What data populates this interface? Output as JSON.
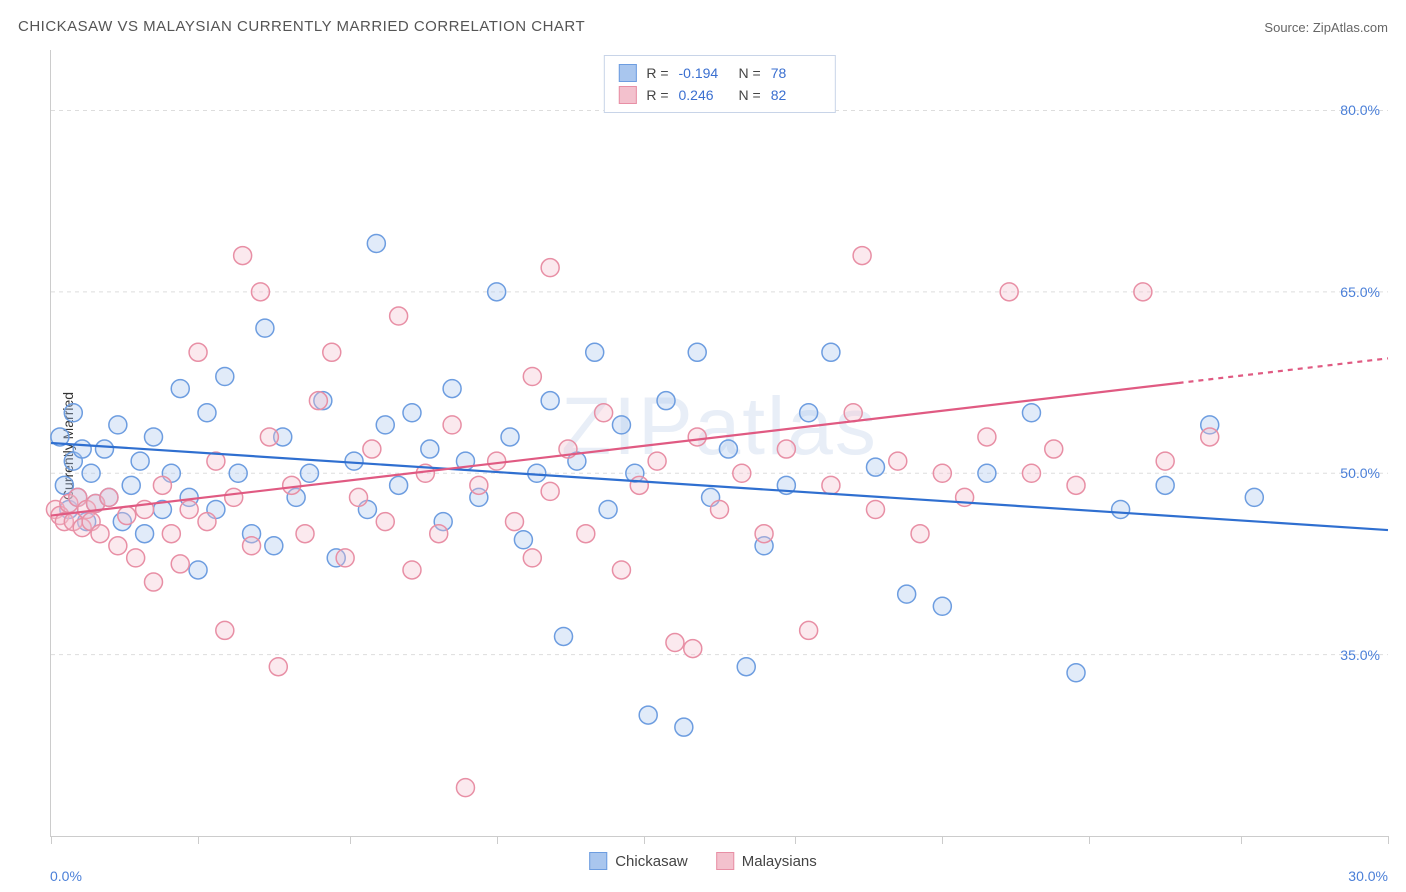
{
  "title": "CHICKASAW VS MALAYSIAN CURRENTLY MARRIED CORRELATION CHART",
  "source_label": "Source:",
  "source_name": "ZipAtlas.com",
  "ylabel": "Currently Married",
  "watermark": "ZIPatlas",
  "chart": {
    "type": "scatter",
    "xlim": [
      0,
      30
    ],
    "ylim": [
      20,
      85
    ],
    "x_axis_unit": "%",
    "y_axis_unit": "%",
    "xmin_label": "0.0%",
    "xmax_label": "30.0%",
    "y_ticks": [
      35.0,
      50.0,
      65.0,
      80.0
    ],
    "y_tick_labels": [
      "35.0%",
      "50.0%",
      "65.0%",
      "80.0%"
    ],
    "x_tick_positions": [
      0,
      3.3,
      6.7,
      10,
      13.3,
      16.7,
      20,
      23.3,
      26.7,
      30
    ],
    "grid_color": "#dddddd",
    "background_color": "#ffffff",
    "axis_color": "#cccccc",
    "tick_label_color": "#4a7fd8",
    "marker_radius": 9,
    "marker_stroke_width": 1.5,
    "marker_fill_opacity": 0.35,
    "trendline_width": 2.2
  },
  "series": [
    {
      "name": "Chickasaw",
      "color_fill": "#a9c6ee",
      "color_stroke": "#6d9de0",
      "trend_color": "#2f6fd0",
      "r": "-0.194",
      "n": "78",
      "trend": {
        "x1": 0,
        "y1": 52.5,
        "x2": 30,
        "y2": 45.3,
        "dashed_from_x": null
      },
      "points": [
        [
          0.2,
          53
        ],
        [
          0.3,
          49
        ],
        [
          0.4,
          47
        ],
        [
          0.5,
          55
        ],
        [
          0.5,
          51
        ],
        [
          0.6,
          48
        ],
        [
          0.7,
          52
        ],
        [
          0.8,
          46
        ],
        [
          0.9,
          50
        ],
        [
          1.0,
          47.5
        ],
        [
          1.2,
          52
        ],
        [
          1.3,
          48
        ],
        [
          1.5,
          54
        ],
        [
          1.6,
          46
        ],
        [
          1.8,
          49
        ],
        [
          2.0,
          51
        ],
        [
          2.1,
          45
        ],
        [
          2.3,
          53
        ],
        [
          2.5,
          47
        ],
        [
          2.7,
          50
        ],
        [
          2.9,
          57
        ],
        [
          3.1,
          48
        ],
        [
          3.3,
          42
        ],
        [
          3.5,
          55
        ],
        [
          3.7,
          47
        ],
        [
          3.9,
          58
        ],
        [
          4.2,
          50
        ],
        [
          4.5,
          45
        ],
        [
          4.8,
          62
        ],
        [
          5.0,
          44
        ],
        [
          5.2,
          53
        ],
        [
          5.5,
          48
        ],
        [
          5.8,
          50
        ],
        [
          6.1,
          56
        ],
        [
          6.4,
          43
        ],
        [
          6.8,
          51
        ],
        [
          7.1,
          47
        ],
        [
          7.3,
          69
        ],
        [
          7.5,
          54
        ],
        [
          7.8,
          49
        ],
        [
          8.1,
          55
        ],
        [
          8.5,
          52
        ],
        [
          8.8,
          46
        ],
        [
          9.0,
          57
        ],
        [
          9.3,
          51
        ],
        [
          9.6,
          48
        ],
        [
          10.0,
          65
        ],
        [
          10.3,
          53
        ],
        [
          10.6,
          44.5
        ],
        [
          10.9,
          50
        ],
        [
          11.2,
          56
        ],
        [
          11.5,
          36.5
        ],
        [
          11.8,
          51
        ],
        [
          12.2,
          60
        ],
        [
          12.5,
          47
        ],
        [
          12.8,
          54
        ],
        [
          13.1,
          50
        ],
        [
          13.4,
          30
        ],
        [
          13.8,
          56
        ],
        [
          14.2,
          29
        ],
        [
          14.5,
          60
        ],
        [
          14.8,
          48
        ],
        [
          15.2,
          52
        ],
        [
          15.6,
          34
        ],
        [
          16.0,
          44
        ],
        [
          16.5,
          49
        ],
        [
          17.0,
          55
        ],
        [
          17.5,
          60
        ],
        [
          18.5,
          50.5
        ],
        [
          19.2,
          40
        ],
        [
          20.0,
          39
        ],
        [
          21.0,
          50
        ],
        [
          22.0,
          55
        ],
        [
          23.0,
          33.5
        ],
        [
          24.0,
          47
        ],
        [
          25.0,
          49
        ],
        [
          26.0,
          54
        ],
        [
          27.0,
          48
        ]
      ]
    },
    {
      "name": "Malaysians",
      "color_fill": "#f3c1cd",
      "color_stroke": "#e88fa5",
      "trend_color": "#e05a82",
      "r": "0.246",
      "n": "82",
      "trend": {
        "x1": 0,
        "y1": 46.5,
        "x2": 30,
        "y2": 59.5,
        "dashed_from_x": 25.3
      },
      "points": [
        [
          0.1,
          47
        ],
        [
          0.2,
          46.5
        ],
        [
          0.3,
          46
        ],
        [
          0.4,
          47.5
        ],
        [
          0.5,
          46
        ],
        [
          0.6,
          48
        ],
        [
          0.7,
          45.5
        ],
        [
          0.8,
          47
        ],
        [
          0.9,
          46
        ],
        [
          1.0,
          47.5
        ],
        [
          1.1,
          45
        ],
        [
          1.3,
          48
        ],
        [
          1.5,
          44
        ],
        [
          1.7,
          46.5
        ],
        [
          1.9,
          43
        ],
        [
          2.1,
          47
        ],
        [
          2.3,
          41
        ],
        [
          2.5,
          49
        ],
        [
          2.7,
          45
        ],
        [
          2.9,
          42.5
        ],
        [
          3.1,
          47
        ],
        [
          3.3,
          60
        ],
        [
          3.5,
          46
        ],
        [
          3.7,
          51
        ],
        [
          3.9,
          37
        ],
        [
          4.1,
          48
        ],
        [
          4.3,
          68
        ],
        [
          4.5,
          44
        ],
        [
          4.7,
          65
        ],
        [
          4.9,
          53
        ],
        [
          5.1,
          34
        ],
        [
          5.4,
          49
        ],
        [
          5.7,
          45
        ],
        [
          6.0,
          56
        ],
        [
          6.3,
          60
        ],
        [
          6.6,
          43
        ],
        [
          6.9,
          48
        ],
        [
          7.2,
          52
        ],
        [
          7.5,
          46
        ],
        [
          7.8,
          63
        ],
        [
          8.1,
          42
        ],
        [
          8.4,
          50
        ],
        [
          8.7,
          45
        ],
        [
          9.0,
          54
        ],
        [
          9.3,
          24
        ],
        [
          9.6,
          49
        ],
        [
          10.0,
          51
        ],
        [
          10.4,
          46
        ],
        [
          10.8,
          58
        ],
        [
          10.8,
          43
        ],
        [
          11.2,
          48.5
        ],
        [
          11.2,
          67
        ],
        [
          11.6,
          52
        ],
        [
          12.0,
          45
        ],
        [
          12.4,
          55
        ],
        [
          12.8,
          42
        ],
        [
          13.2,
          49
        ],
        [
          13.6,
          51
        ],
        [
          14.0,
          36
        ],
        [
          14.5,
          53
        ],
        [
          14.4,
          35.5
        ],
        [
          15.0,
          47
        ],
        [
          15.5,
          50
        ],
        [
          16.0,
          45
        ],
        [
          16.5,
          52
        ],
        [
          17.0,
          37
        ],
        [
          17.5,
          49
        ],
        [
          18.0,
          55
        ],
        [
          18.2,
          68
        ],
        [
          18.5,
          47
        ],
        [
          19.0,
          51
        ],
        [
          19.5,
          45
        ],
        [
          20.0,
          50
        ],
        [
          20.5,
          48
        ],
        [
          21.0,
          53
        ],
        [
          21.5,
          65
        ],
        [
          22.0,
          50
        ],
        [
          22.5,
          52
        ],
        [
          23.0,
          49
        ],
        [
          24.5,
          65
        ],
        [
          25.0,
          51
        ],
        [
          26.0,
          53
        ]
      ]
    }
  ],
  "legend_top": {
    "r_label": "R =",
    "n_label": "N ="
  },
  "legend_bottom": {
    "items": [
      "Chickasaw",
      "Malaysians"
    ]
  }
}
